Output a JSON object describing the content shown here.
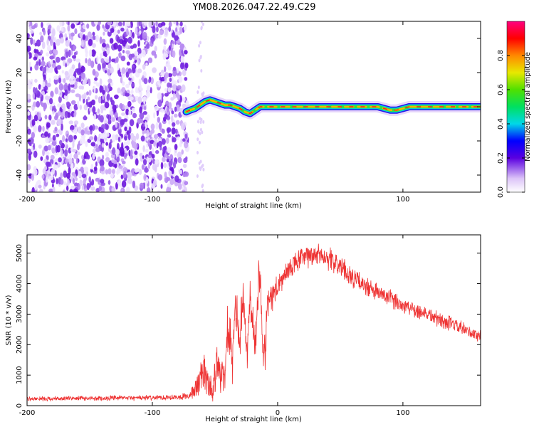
{
  "title": "YM08.2026.047.22.49.C29",
  "chart_data": [
    {
      "type": "heatmap",
      "xlabel": "Height of straight line (km)",
      "ylabel": "Frequency (Hz)",
      "xlim": [
        -200,
        162
      ],
      "ylim": [
        -50,
        50
      ],
      "xticks": [
        -200,
        -100,
        0,
        100
      ],
      "yticks": [
        -40,
        -20,
        0,
        20,
        40
      ],
      "noise_region": [
        -200,
        -72
      ],
      "noise_strip": [
        -64,
        -59
      ],
      "ridge": {
        "x": [
          -73,
          -70,
          -66,
          -62,
          -58,
          -54,
          -50,
          -46,
          -42,
          -38,
          -34,
          -30,
          -26,
          -22,
          -18,
          -14,
          -10,
          -6,
          -2,
          2,
          10,
          20,
          40,
          60,
          70,
          80,
          85,
          90,
          95,
          100,
          105,
          110,
          130,
          150,
          162
        ],
        "y": [
          -3,
          -2,
          -1,
          1,
          3,
          4,
          3,
          2,
          1,
          1,
          0,
          -1,
          -3,
          -4,
          -2,
          0,
          0,
          0,
          0,
          0,
          0,
          0,
          0,
          0,
          0,
          0,
          -1,
          -2,
          -2,
          -1,
          0,
          0,
          0,
          0,
          0
        ]
      },
      "colorbar": {
        "label": "Normalized spectral amplitude",
        "range": [
          0,
          1
        ],
        "ticks": [
          {
            "v": 0.0,
            "label": "0.0"
          },
          {
            "v": 0.2,
            "label": "0.2"
          },
          {
            "v": 0.4,
            "label": "0.4"
          },
          {
            "v": 0.6,
            "label": "0.6"
          },
          {
            "v": 0.8,
            "label": "0.8"
          }
        ]
      }
    },
    {
      "type": "line",
      "xlabel": "Height of straight line (km)",
      "ylabel": "SNR (10 * v/v)",
      "xlim": [
        -200,
        162
      ],
      "ylim": [
        0,
        5600
      ],
      "xticks": [
        -200,
        -100,
        0,
        100
      ],
      "yticks": [
        0,
        1000,
        2000,
        3000,
        4000,
        5000
      ],
      "color": "#ee3333",
      "series": [
        {
          "name": "SNR",
          "x": [
            -200,
            -180,
            -160,
            -140,
            -120,
            -100,
            -90,
            -80,
            -70,
            -65,
            -60,
            -55,
            -52,
            -50,
            -48,
            -45,
            -42,
            -40,
            -38,
            -36,
            -34,
            -32,
            -30,
            -28,
            -26,
            -24,
            -22,
            -20,
            -18,
            -16,
            -14,
            -12,
            -10,
            -8,
            -6,
            -4,
            -2,
            0,
            5,
            10,
            15,
            20,
            25,
            30,
            35,
            40,
            45,
            50,
            60,
            70,
            80,
            90,
            100,
            110,
            120,
            130,
            140,
            150,
            162
          ],
          "y": [
            220,
            230,
            240,
            240,
            250,
            260,
            270,
            290,
            320,
            600,
            1100,
            800,
            400,
            900,
            1500,
            1200,
            700,
            2600,
            2000,
            1300,
            3200,
            2800,
            2000,
            3600,
            2600,
            1600,
            3800,
            3200,
            1800,
            3600,
            4600,
            2200,
            1700,
            3500,
            3400,
            3600,
            3800,
            3900,
            4200,
            4500,
            4700,
            4850,
            4900,
            4950,
            4950,
            4850,
            4700,
            4550,
            4200,
            3900,
            3700,
            3500,
            3300,
            3150,
            3000,
            2800,
            2650,
            2450,
            2250
          ],
          "noise_amp": [
            80,
            90,
            90,
            95,
            100,
            100,
            110,
            120,
            140,
            500,
            800,
            700,
            400,
            800,
            900,
            900,
            700,
            900,
            1000,
            900,
            900,
            1000,
            1000,
            900,
            900,
            900,
            900,
            900,
            900,
            1000,
            900,
            900,
            900,
            700,
            600,
            600,
            550,
            500,
            500,
            450,
            450,
            450,
            450,
            450,
            450,
            450,
            450,
            450,
            400,
            380,
            360,
            350,
            340,
            330,
            320,
            310,
            300,
            290,
            280
          ]
        }
      ]
    }
  ]
}
